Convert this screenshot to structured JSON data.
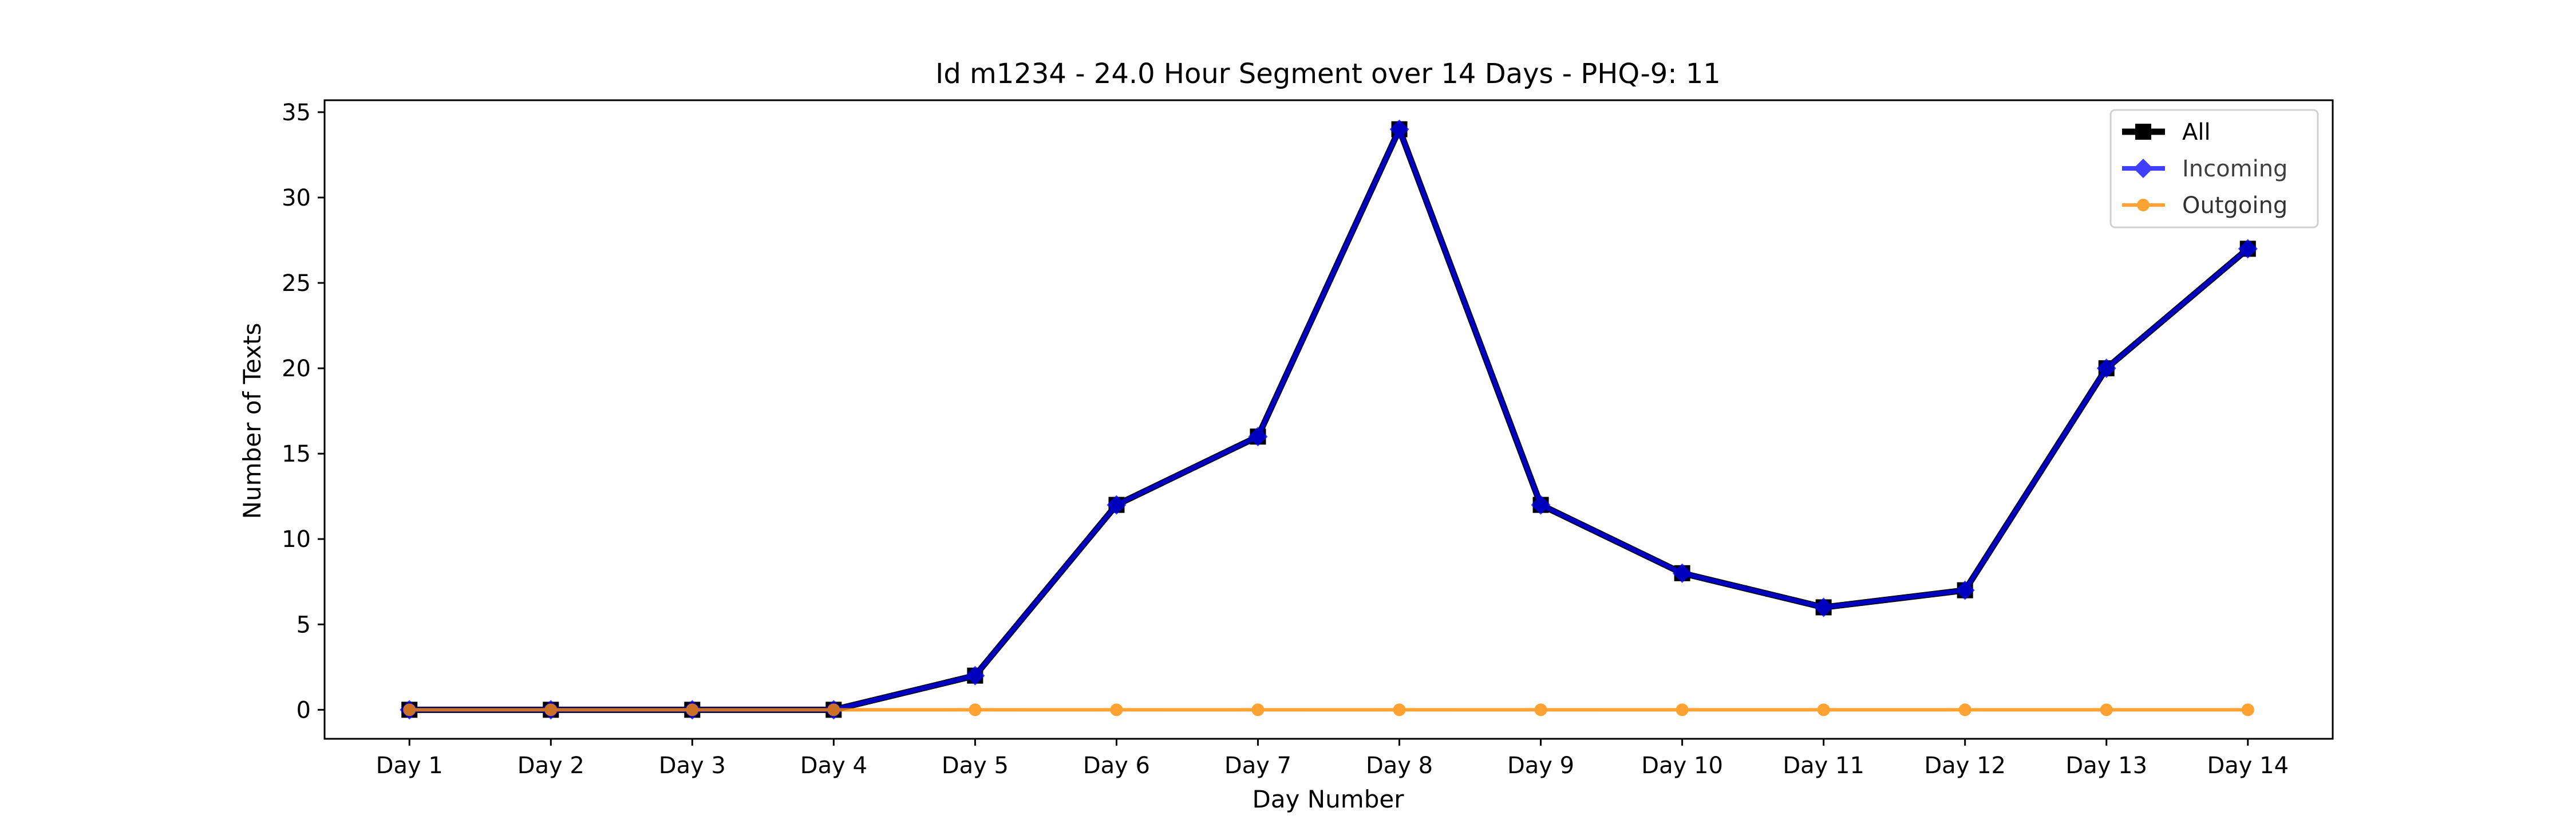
{
  "chart_data": {
    "type": "line",
    "title": "Id m1234 - 24.0 Hour Segment over 14 Days - PHQ-9: 11",
    "xlabel": "Day Number",
    "ylabel": "Number of Texts",
    "categories": [
      "Day 1",
      "Day 2",
      "Day 3",
      "Day 4",
      "Day 5",
      "Day 6",
      "Day 7",
      "Day 8",
      "Day 9",
      "Day 10",
      "Day 11",
      "Day 12",
      "Day 13",
      "Day 14"
    ],
    "yticks": [
      0,
      5,
      10,
      15,
      20,
      25,
      30,
      35
    ],
    "ylim": [
      -1.7,
      35.7
    ],
    "grid": false,
    "legend_position": "top-right",
    "series": [
      {
        "name": "All",
        "color": "#000000",
        "marker": "square",
        "values": [
          0,
          0,
          0,
          0,
          2,
          12,
          16,
          34,
          12,
          8,
          6,
          7,
          20,
          27
        ]
      },
      {
        "name": "Incoming",
        "color": "#0000ff",
        "marker": "diamond",
        "values": [
          0,
          0,
          0,
          0,
          2,
          12,
          16,
          34,
          12,
          8,
          6,
          7,
          20,
          27
        ]
      },
      {
        "name": "Outgoing",
        "color": "#ff8c00",
        "marker": "circle",
        "values": [
          0,
          0,
          0,
          0,
          0,
          0,
          0,
          0,
          0,
          0,
          0,
          0,
          0,
          0
        ]
      }
    ]
  }
}
